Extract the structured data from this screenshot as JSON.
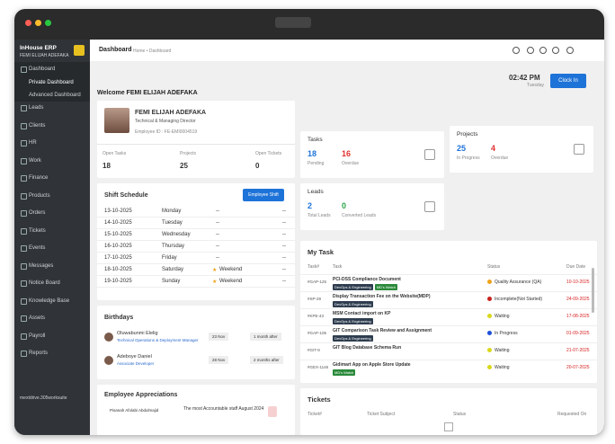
{
  "sidebar": {
    "app": "InHouse ERP",
    "user": "FEMI ELIJAH ADEFAKA",
    "menu": [
      "Dashboard",
      "Private Dashboard",
      "Advanced Dashboard",
      "Leads",
      "Clients",
      "HR",
      "Work",
      "Finance",
      "Products",
      "Orders",
      "Tickets",
      "Events",
      "Messages",
      "Notice Board",
      "Knowledge Base",
      "Assets",
      "Payroll",
      "Reports"
    ],
    "footer": "mextdrive.305worksuite"
  },
  "header": {
    "title": "Dashboard",
    "breadcrumb": "Home • Dashboard",
    "time": "02:42 PM",
    "day": "Tuesday",
    "clock_in": "Clock In",
    "welcome": "Welcome FEMI ELIJAH ADEFAKA"
  },
  "profile": {
    "name": "FEMI ELIJAH ADEFAKA",
    "role": "Technical & Managing Director",
    "employee_id": "Employee ID : FE-EMI0004519",
    "stats": [
      {
        "label": "Open Tasks",
        "value": "18"
      },
      {
        "label": "Projects",
        "value": "25"
      },
      {
        "label": "Open Tickets",
        "value": "0"
      }
    ]
  },
  "tasks_card": {
    "title": "Tasks",
    "stats": [
      {
        "value": "18",
        "label": "Pending",
        "color": "#1e73d8"
      },
      {
        "value": "16",
        "label": "Overdue",
        "color": "#e03030"
      }
    ]
  },
  "projects_card": {
    "title": "Projects",
    "stats": [
      {
        "value": "25",
        "label": "In Progress",
        "color": "#1e73d8"
      },
      {
        "value": "4",
        "label": "Overdue",
        "color": "#e03030"
      }
    ]
  },
  "leads_card": {
    "title": "Leads",
    "stats": [
      {
        "value": "2",
        "label": "Total Leads",
        "color": "#1e73d8"
      },
      {
        "value": "0",
        "label": "Converted Leads",
        "color": "#2aa44a"
      }
    ]
  },
  "shift": {
    "title": "Shift Schedule",
    "button": "Employee Shift",
    "rows": [
      [
        "13-10-2025",
        "Monday",
        "--"
      ],
      [
        "14-10-2025",
        "Tuesday",
        "--"
      ],
      [
        "15-10-2025",
        "Wednesday",
        "--"
      ],
      [
        "16-10-2025",
        "Thursday",
        "--"
      ],
      [
        "17-10-2025",
        "Friday",
        "--"
      ],
      [
        "18-10-2025",
        "Saturday",
        "Weekend"
      ],
      [
        "19-10-2025",
        "Sunday",
        "Weekend"
      ]
    ]
  },
  "birthdays": {
    "title": "Birthdays",
    "rows": [
      [
        "Oluwabunmi Elelig",
        "Technical Operations & Deployment Manager",
        "23 Nov",
        "1 month after"
      ],
      [
        "Adeboye Daniel",
        "Associate Developer",
        "28 Nov",
        "2 months after"
      ]
    ]
  },
  "appreciations": {
    "title": "Employee Appreciations",
    "rows": [
      [
        "Pisanah Afolabi Abdulmajid",
        "The most Accountable staff August 2024"
      ]
    ]
  },
  "my_task": {
    "title": "My Task",
    "headers": [
      "Task#",
      "Task",
      "Status",
      "Due Date"
    ],
    "rows": [
      {
        "id": "#GAP-125",
        "task": "PCI-DSS Compliance Document",
        "tags": [
          "DevOps & Engineering",
          "MD's Watch"
        ],
        "status": "Quality Assurance (QA)",
        "status_color": "#f0a21c",
        "due": "10-10-2025"
      },
      {
        "id": "#SP-29",
        "task": "Display Transaction Fee on the Website(MDP)",
        "tags": [
          "DevOps & Engineering"
        ],
        "status": "Incomplete(Not Started)",
        "status_color": "#c8221c",
        "due": "24-09-2025"
      },
      {
        "id": "#KPE-43",
        "task": "MSM Contact import on KP",
        "tags": [
          "DevOps & Engineering"
        ],
        "status": "Waiting",
        "status_color": "#d8d81c",
        "due": "17-08-2025"
      },
      {
        "id": "#GAP-105",
        "task": "GIT Comparison Task Review and Assignment",
        "tags": [
          "DevOps & Engineering"
        ],
        "status": "In Progress",
        "status_color": "#1e50d8",
        "due": "01-09-2025"
      },
      {
        "id": "#GIT-9",
        "task": "GIT Blog Database Schema Run",
        "tags": [],
        "status": "Waiting",
        "status_color": "#d8d81c",
        "due": "21-07-2025"
      },
      {
        "id": "#GEX-1146",
        "task": "Gidimart App on Apple Store Update",
        "tags": [
          "MD's Watch"
        ],
        "status": "Waiting",
        "status_color": "#d8d81c",
        "due": "20-07-2025"
      }
    ]
  },
  "tickets": {
    "title": "Tickets",
    "headers": [
      "Ticket#",
      "Ticket Subject",
      "Status",
      "Requested On"
    ]
  }
}
